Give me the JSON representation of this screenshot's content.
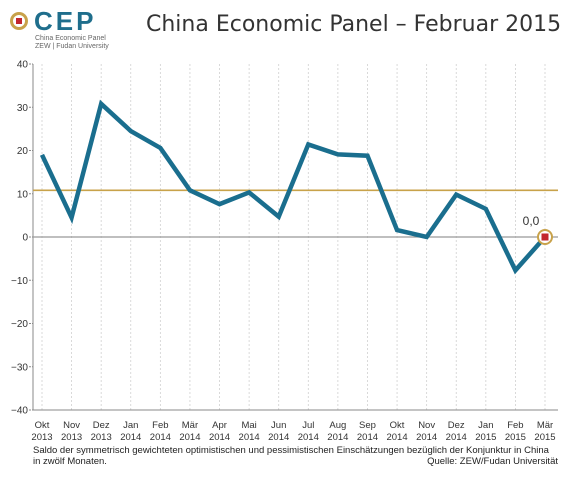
{
  "logo": {
    "mark": "CEP",
    "subtitle_line1": "China Economic Panel",
    "subtitle_line2": "ZEW | Fudan University"
  },
  "title": "China Economic Panel – Februar 2015",
  "footer": {
    "note": "Saldo der symmetrisch gewichteten optimistischen und pessimistischen Einschätzungen bezüglich der Konjunktur in China in zwölf Monaten.",
    "source": "Quelle: ZEW/Fudan Universität"
  },
  "chart_data": {
    "type": "line",
    "x": [
      [
        "Okt",
        "2013"
      ],
      [
        "Nov",
        "2013"
      ],
      [
        "Dez",
        "2013"
      ],
      [
        "Jan",
        "2014"
      ],
      [
        "Feb",
        "2014"
      ],
      [
        "Mär",
        "2014"
      ],
      [
        "Apr",
        "2014"
      ],
      [
        "Mai",
        "2014"
      ],
      [
        "Jun",
        "2014"
      ],
      [
        "Jul",
        "2014"
      ],
      [
        "Aug",
        "2014"
      ],
      [
        "Sep",
        "2014"
      ],
      [
        "Okt",
        "2014"
      ],
      [
        "Nov",
        "2014"
      ],
      [
        "Dez",
        "2014"
      ],
      [
        "Jan",
        "2015"
      ],
      [
        "Feb",
        "2015"
      ],
      [
        "Mär",
        "2015"
      ]
    ],
    "series": [
      {
        "values": [
          19.0,
          4.5,
          30.8,
          24.5,
          20.6,
          10.8,
          7.6,
          10.3,
          4.7,
          21.4,
          19.1,
          18.8,
          1.6,
          0.0,
          9.8,
          6.5,
          -7.7,
          0.0
        ],
        "color": "#1a6e8e"
      }
    ],
    "reference_line": {
      "value": 10.8,
      "color": "#c8a24a"
    },
    "zero_line_color": "#999999",
    "yticks": [
      40,
      30,
      20,
      10,
      0,
      -10,
      -20,
      -30,
      -40
    ],
    "ylim": [
      -40,
      40
    ],
    "grid": "vertical-dashed",
    "last_label": "0,0",
    "marker_color": "#c2262e"
  }
}
